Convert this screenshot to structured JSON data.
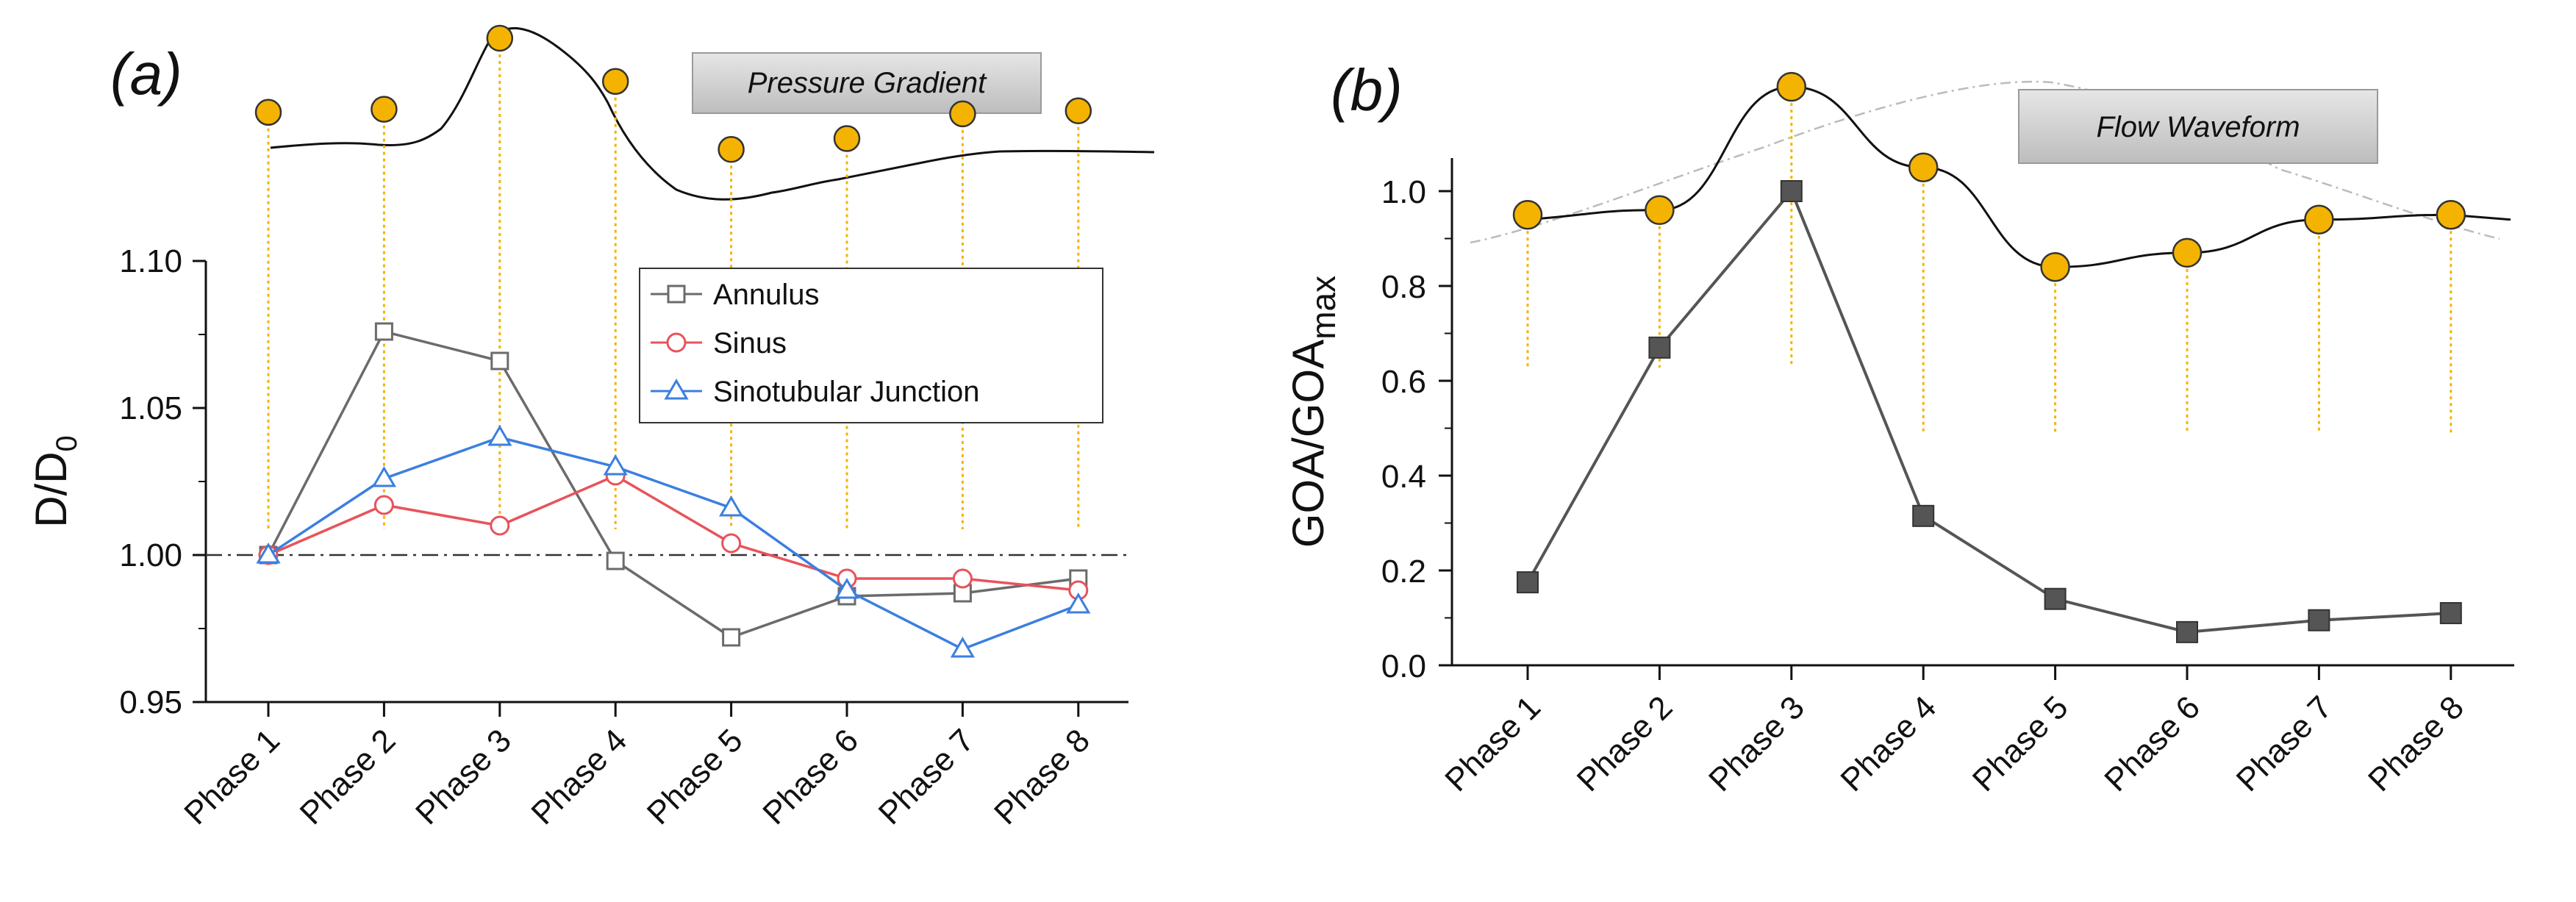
{
  "chart_data": [
    {
      "panel_label": "(a)",
      "type": "line",
      "ylabel_main": "D/D",
      "ylabel_sub": "0",
      "ylim": [
        0.95,
        1.1
      ],
      "yticks": [
        "0.95",
        "1.00",
        "1.05",
        "1.10"
      ],
      "ytick_values": [
        0.95,
        1.0,
        1.05,
        1.1
      ],
      "reference_line": 1.0,
      "categories": [
        "Phase 1",
        "Phase 2",
        "Phase 3",
        "Phase 4",
        "Phase 5",
        "Phase 6",
        "Phase 7",
        "Phase 8"
      ],
      "series": [
        {
          "name": "Annulus",
          "marker": "square",
          "color": "#6b6b6b",
          "values": [
            1.0,
            1.076,
            1.066,
            0.998,
            0.972,
            0.986,
            0.987,
            0.992
          ]
        },
        {
          "name": "Sinus",
          "marker": "circle",
          "color": "#e8535a",
          "values": [
            1.0,
            1.017,
            1.01,
            1.027,
            1.004,
            0.992,
            0.992,
            0.988
          ]
        },
        {
          "name": "Sinotubular Junction",
          "marker": "triangle",
          "color": "#3b7fe0",
          "values": [
            1.0,
            1.026,
            1.04,
            1.03,
            1.016,
            0.988,
            0.968,
            0.983
          ]
        }
      ],
      "waveform": {
        "title": "Pressure Gradient",
        "marker_color": "#f5b301",
        "relative_levels": [
          0.52,
          0.54,
          1.0,
          0.72,
          0.28,
          0.35,
          0.51,
          0.53
        ]
      }
    },
    {
      "panel_label": "(b)",
      "type": "line",
      "ylabel_main": "GOA/GOA",
      "ylabel_sub": "max",
      "ylim": [
        0.0,
        1.05
      ],
      "yticks": [
        "0.0",
        "0.2",
        "0.4",
        "0.6",
        "0.8",
        "1.0"
      ],
      "ytick_values": [
        0.0,
        0.2,
        0.4,
        0.6,
        0.8,
        1.0
      ],
      "categories": [
        "Phase 1",
        "Phase 2",
        "Phase 3",
        "Phase 4",
        "Phase 5",
        "Phase 6",
        "Phase 7",
        "Phase 8"
      ],
      "series": [
        {
          "name": "GOA/GOAmax",
          "marker": "square-filled",
          "color": "#555555",
          "values": [
            0.175,
            0.67,
            1.0,
            0.315,
            0.14,
            0.07,
            0.095,
            0.11
          ]
        }
      ],
      "waveform": {
        "title": "Flow Waveform",
        "marker_color": "#f5b301",
        "values": [
          0.95,
          0.96,
          1.22,
          1.05,
          0.84,
          0.87,
          0.94,
          0.95
        ]
      }
    }
  ]
}
